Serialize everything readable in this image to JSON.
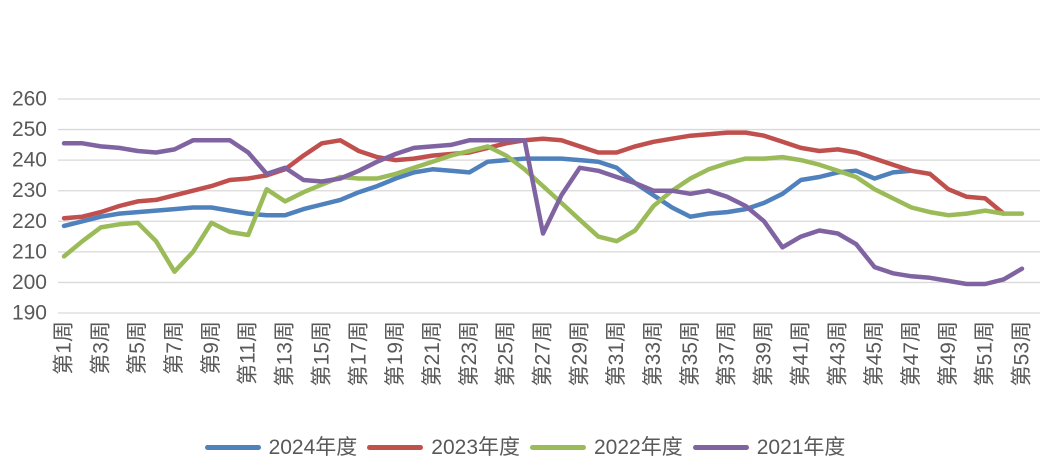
{
  "page": {
    "background": "#FFFFFF"
  },
  "chart_data": {
    "type": "line",
    "title": "",
    "xlabel": "",
    "ylabel": "",
    "grid": true,
    "legend_position": "bottom",
    "x_axis": {
      "unit": "week",
      "num_points": 53,
      "tick_step": 2,
      "tick_labels": [
        "第1周",
        "第3周",
        "第5周",
        "第7周",
        "第9周",
        "第11周",
        "第13周",
        "第15周",
        "第17周",
        "第19周",
        "第21周",
        "第23周",
        "第25周",
        "第27周",
        "第29周",
        "第31周",
        "第33周",
        "第35周",
        "第37周",
        "第39周",
        "第41周",
        "第43周",
        "第45周",
        "第47周",
        "第49周",
        "第51周",
        "第53周"
      ]
    },
    "y_axis": {
      "min": 190,
      "max": 260,
      "step": 10,
      "tick_labels": [
        "260",
        "250",
        "240",
        "230",
        "220",
        "210",
        "200",
        "190"
      ]
    },
    "styles": {
      "gridline_color": "#D9D9D9",
      "axis_text_color": "#595959",
      "legend_text_color": "#595959",
      "line_width": 4.5
    },
    "series": [
      {
        "name": "2024年度",
        "color": "#4F81BD",
        "start_week": 1,
        "values": [
          218.5,
          220,
          221.5,
          222.5,
          223,
          223.5,
          224,
          224.5,
          224.5,
          223.5,
          222.5,
          222,
          222,
          224,
          225.5,
          227,
          229.5,
          231.5,
          234,
          236,
          237,
          236.5,
          236,
          239.5,
          240,
          240.5,
          240.5,
          240.5,
          240,
          239.5,
          237.5,
          232.5,
          228.5,
          224.5,
          221.5,
          222.5,
          223,
          224,
          226,
          229,
          233.5,
          234.5,
          236,
          236.5,
          234,
          236,
          236.5
        ]
      },
      {
        "name": "2023年度",
        "color": "#C0504D",
        "start_week": 1,
        "values": [
          221,
          221.5,
          223,
          225,
          226.5,
          227,
          228.5,
          230,
          231.5,
          233.5,
          234,
          235,
          237,
          241.5,
          245.5,
          246.5,
          243,
          241,
          240,
          240.5,
          241.5,
          242,
          242.5,
          244,
          245.5,
          246.5,
          247,
          246.5,
          244.5,
          242.5,
          242.5,
          244.5,
          246,
          247,
          248,
          248.5,
          249,
          249,
          248,
          246,
          244,
          243,
          243.5,
          242.5,
          240.5,
          238.5,
          236.5,
          235.5,
          230.5,
          228,
          227.5,
          222.5
        ]
      },
      {
        "name": "2022年度",
        "color": "#9BBB59",
        "start_week": 1,
        "values": [
          208.5,
          213.5,
          218,
          219,
          219.5,
          213.5,
          203.5,
          210,
          219.5,
          216.5,
          215.5,
          230.5,
          226.5,
          229.5,
          232,
          234.5,
          234,
          234,
          235.5,
          237.5,
          239.5,
          241.5,
          243,
          244.5,
          241.5,
          237,
          231.5,
          226,
          220.5,
          215,
          213.5,
          217,
          225,
          230,
          234,
          237,
          239,
          240.5,
          240.5,
          241,
          240,
          238.5,
          236.5,
          234.5,
          230.5,
          227.5,
          224.5,
          223,
          222,
          222.5,
          223.5,
          222.5,
          222.5
        ]
      },
      {
        "name": "2021年度",
        "color": "#8064A2",
        "start_week": 1,
        "values": [
          245.5,
          245.5,
          244.5,
          244,
          243,
          242.5,
          243.5,
          246.5,
          246.5,
          246.5,
          242.5,
          235.5,
          237.5,
          233.5,
          233,
          234,
          236.5,
          239.5,
          242,
          244,
          244.5,
          245,
          246.5,
          246.5,
          246.5,
          246.5,
          216,
          228.5,
          237.5,
          236.5,
          234.5,
          232.5,
          230,
          230,
          229,
          230,
          228,
          225,
          220,
          211.5,
          215,
          217,
          216,
          212.5,
          205,
          203,
          202,
          201.5,
          200.5,
          199.5,
          199.5,
          201,
          204.5
        ]
      }
    ]
  }
}
